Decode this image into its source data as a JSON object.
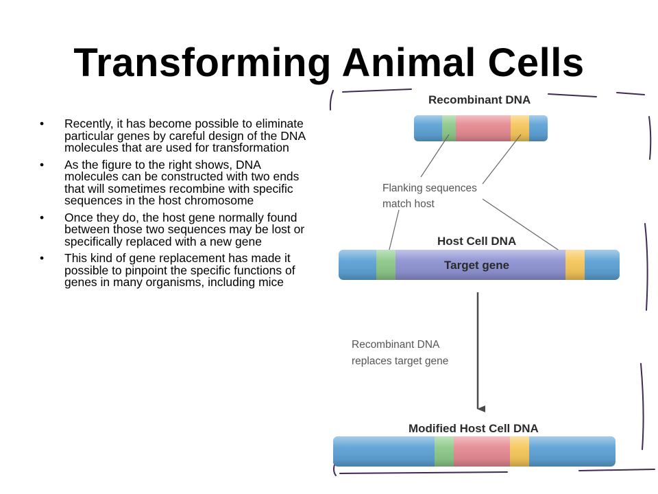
{
  "slide": {
    "title": "Transforming Animal Cells",
    "bullets": [
      "Recently, it has become possible to eliminate particular genes by careful design of the DNA molecules that are used for transformation",
      "As the figure to the right shows, DNA molecules can be constructed with two ends that will sometimes recombine with specific sequences in the host chromosome",
      "Once they do, the host gene normally found between those two sequences may be lost or specifically replaced with a new gene",
      "This kind of gene replacement has made it possible to pinpoint the specific functions of genes in many organisms, including mice"
    ]
  },
  "figure": {
    "labels": {
      "recombinant_dna": "Recombinant DNA",
      "flanking_line1": "Flanking sequences",
      "flanking_line2": "match host",
      "host_cell_dna": "Host Cell DNA",
      "target_gene": "Target gene",
      "replaces_line1": "Recombinant DNA",
      "replaces_line2": "replaces target gene",
      "modified_host_dna": "Modified Host Cell DNA"
    },
    "colors": {
      "dna_blue": "#5fa3d6",
      "flank_green": "#8ec98a",
      "insert_pink": "#e58b93",
      "flank_yellow": "#f6c75c",
      "target_purple": "#8f93d2",
      "arrow": "#4a4a4a",
      "frame": "#3d2a55"
    }
  }
}
